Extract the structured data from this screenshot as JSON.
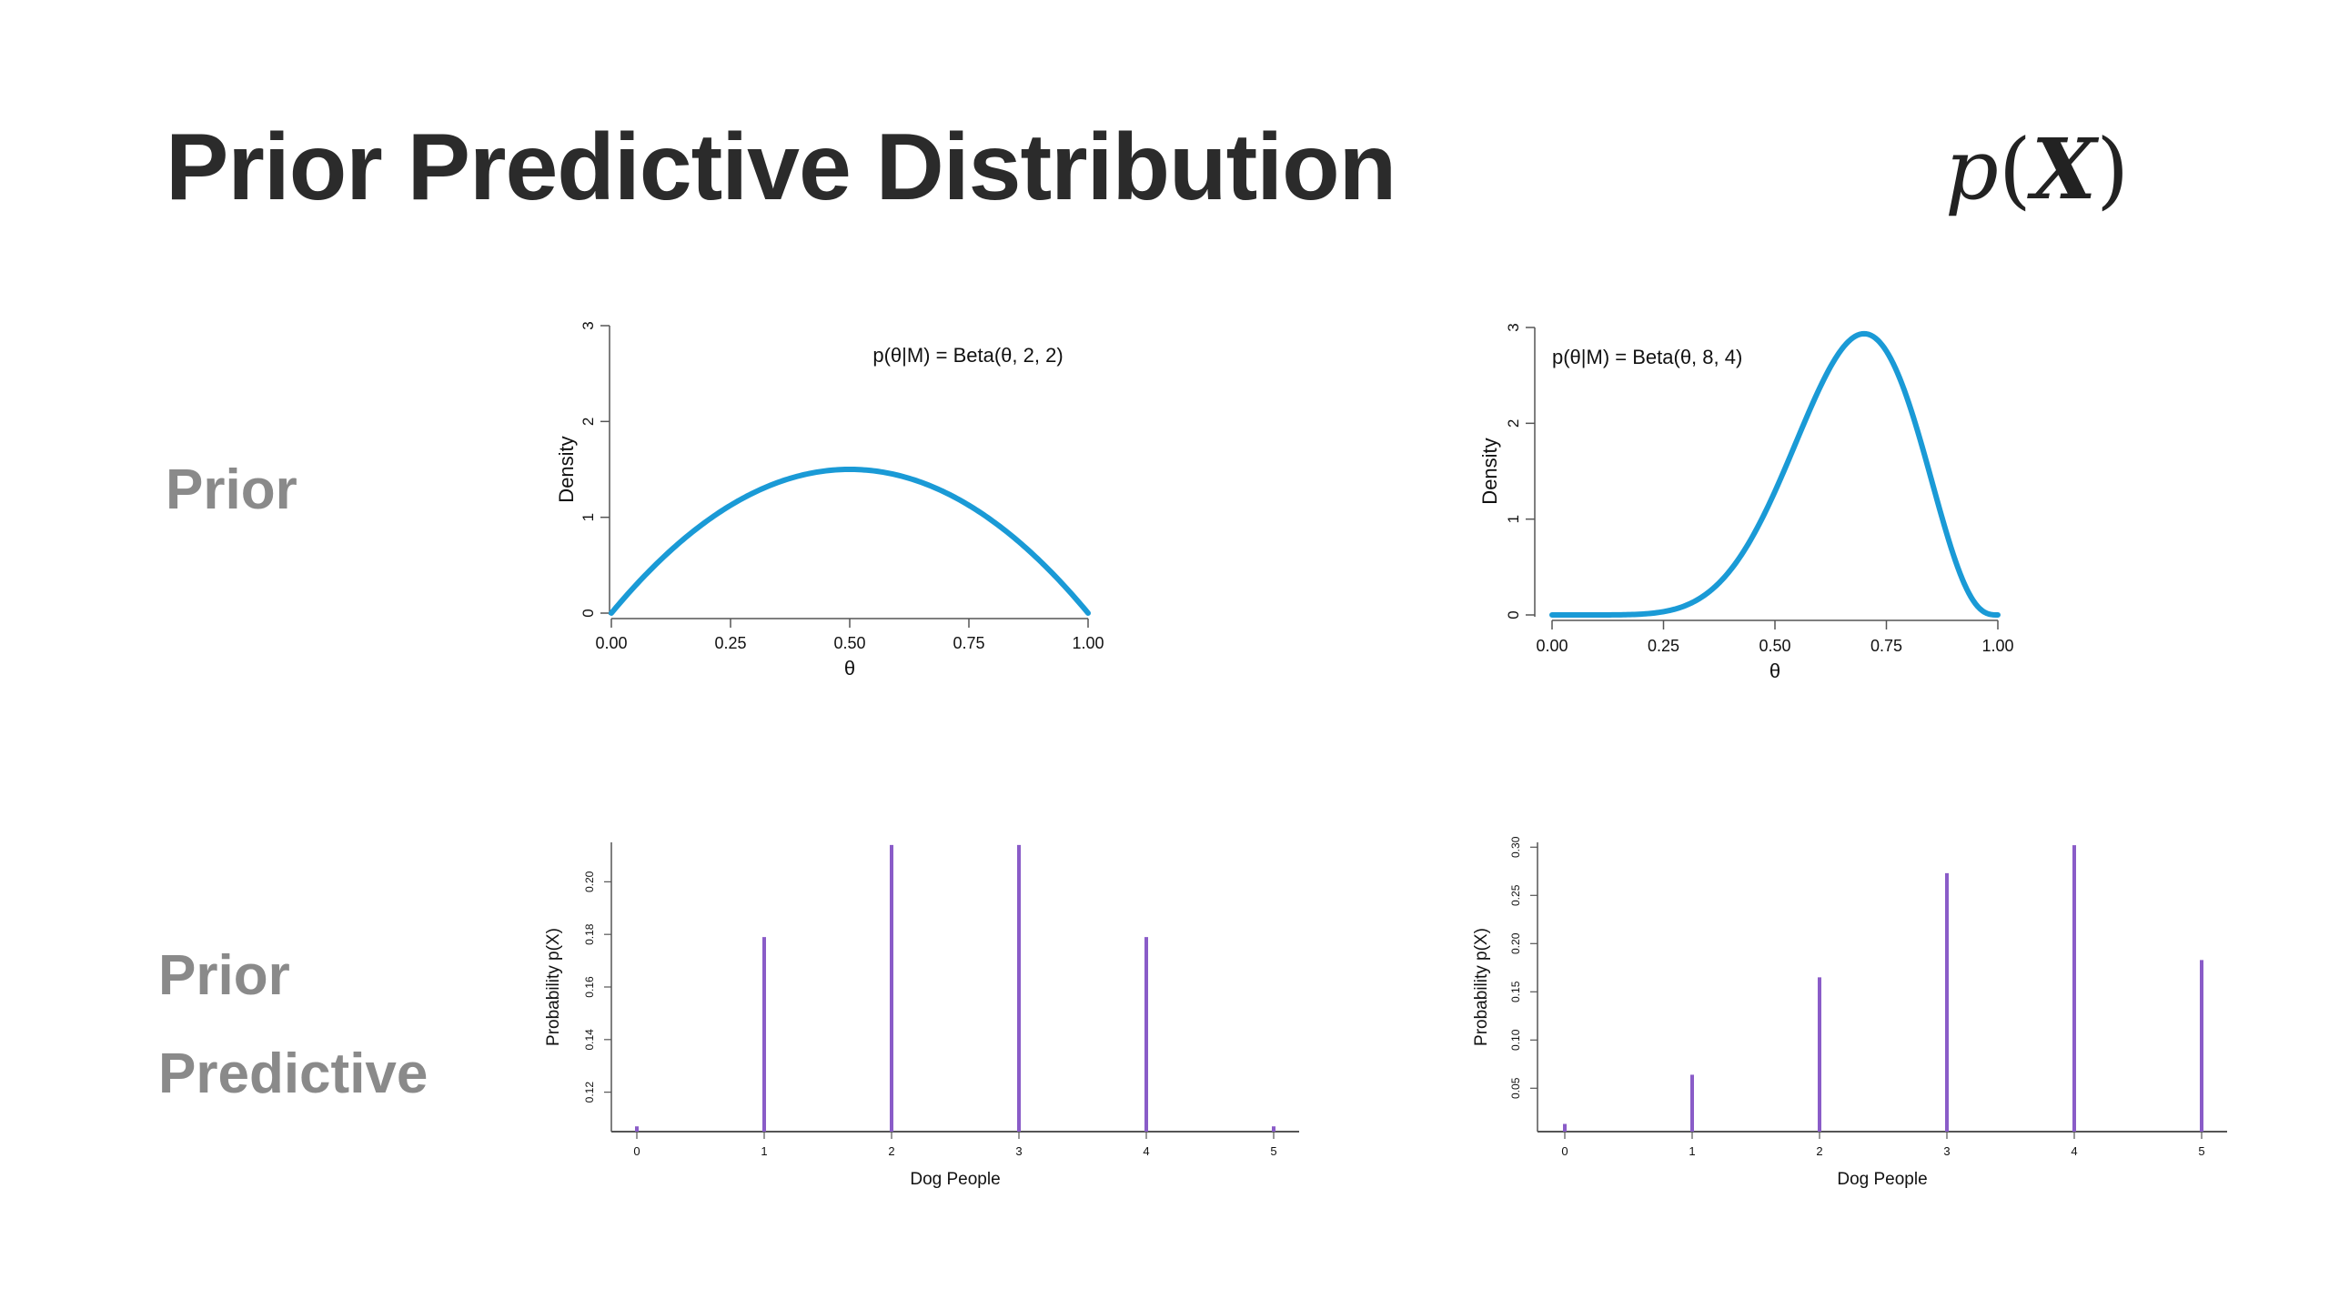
{
  "title": "Prior Predictive Distribution",
  "formula": {
    "p": "p",
    "open": "(",
    "x": "X",
    "close": ")"
  },
  "row_labels": {
    "prior": "Prior",
    "predictive_line1": "Prior",
    "predictive_line2": "Predictive"
  },
  "colors": {
    "density": "#1a9ad6",
    "pmf": "#8a5cc8",
    "axis": "#555555",
    "label": "#8a8a8a"
  },
  "chart_data": [
    {
      "type": "line",
      "title": "p(θ|M) = Beta(θ, 2, 2)",
      "xlabel": "θ",
      "ylabel": "Density",
      "alpha": 2,
      "beta": 2,
      "xlim": [
        0,
        1
      ],
      "ylim": [
        0,
        3
      ],
      "xticks": [
        "0.00",
        "0.25",
        "0.50",
        "0.75",
        "1.00"
      ],
      "xtick_values": [
        0,
        0.25,
        0.5,
        0.75,
        1
      ],
      "yticks": [
        "0",
        "1",
        "2",
        "3"
      ],
      "ytick_values": [
        0,
        1,
        2,
        3
      ],
      "legend": "none",
      "grid": false
    },
    {
      "type": "line",
      "title": "p(θ|M) = Beta(θ, 8, 4)",
      "xlabel": "θ",
      "ylabel": "Density",
      "alpha": 8,
      "beta": 4,
      "xlim": [
        0,
        1
      ],
      "ylim": [
        0,
        3
      ],
      "xticks": [
        "0.00",
        "0.25",
        "0.50",
        "0.75",
        "1.00"
      ],
      "xtick_values": [
        0,
        0.25,
        0.5,
        0.75,
        1
      ],
      "yticks": [
        "0",
        "1",
        "2",
        "3"
      ],
      "ytick_values": [
        0,
        1,
        2,
        3
      ],
      "legend": "none",
      "grid": false
    },
    {
      "type": "bar",
      "xlabel": "Dog People",
      "ylabel": "Probability p(X)",
      "categories": [
        "0",
        "1",
        "2",
        "3",
        "4",
        "5"
      ],
      "values": [
        0.107,
        0.179,
        0.214,
        0.214,
        0.179,
        0.107
      ],
      "ylim": [
        0.105,
        0.215
      ],
      "yticks": [
        "0.12",
        "0.14",
        "0.16",
        "0.18",
        "0.20"
      ],
      "ytick_values": [
        0.12,
        0.14,
        0.16,
        0.18,
        0.2
      ],
      "legend": "none",
      "grid": false
    },
    {
      "type": "bar",
      "xlabel": "Dog People",
      "ylabel": "Probability p(X)",
      "categories": [
        "0",
        "1",
        "2",
        "3",
        "4",
        "5"
      ],
      "values": [
        0.013,
        0.064,
        0.165,
        0.273,
        0.302,
        0.183
      ],
      "ylim": [
        0.005,
        0.305
      ],
      "yticks": [
        "0.05",
        "0.10",
        "0.15",
        "0.20",
        "0.25",
        "0.30"
      ],
      "ytick_values": [
        0.05,
        0.1,
        0.15,
        0.2,
        0.25,
        0.3
      ],
      "legend": "none",
      "grid": false
    }
  ]
}
